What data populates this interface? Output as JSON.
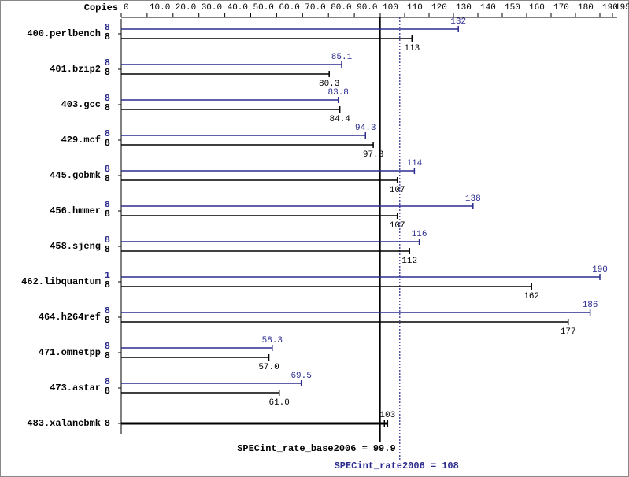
{
  "chart_data": {
    "type": "bar",
    "orientation": "horizontal",
    "copies_label": "Copies",
    "categories": [
      "400.perlbench",
      "401.bzip2",
      "403.gcc",
      "429.mcf",
      "445.gobmk",
      "456.hmmer",
      "458.sjeng",
      "462.libquantum",
      "464.h264ref",
      "471.omnetpp",
      "473.astar",
      "483.xalancbmk"
    ],
    "xlim": [
      0,
      195
    ],
    "xticks": [
      0,
      {
        "value": 10,
        "label": "10.0"
      },
      {
        "value": 20,
        "label": "20.0"
      },
      {
        "value": 30,
        "label": "30.0"
      },
      {
        "value": 40,
        "label": "40.0"
      },
      {
        "value": 50,
        "label": "50.0"
      },
      {
        "value": 60,
        "label": "60.0"
      },
      {
        "value": 70,
        "label": "70.0"
      },
      {
        "value": 80,
        "label": "80.0"
      },
      {
        "value": 90,
        "label": "90.0"
      },
      100,
      110,
      120,
      130,
      140,
      150,
      160,
      170,
      180,
      190,
      195
    ],
    "series": [
      {
        "color": "#2b2b8f",
        "copies": [
          8,
          8,
          8,
          8,
          8,
          8,
          8,
          1,
          8,
          8,
          8,
          null
        ],
        "values": [
          132,
          85.1,
          83.8,
          94.3,
          114,
          138,
          116,
          190,
          186,
          58.3,
          69.5,
          null
        ]
      },
      {
        "color": "#000000",
        "copies": [
          8,
          8,
          8,
          8,
          8,
          8,
          8,
          8,
          8,
          8,
          8,
          8
        ],
        "values": [
          113,
          80.3,
          84.4,
          97.3,
          107,
          107,
          112,
          162,
          177,
          57.0,
          61.0,
          103
        ],
        "value_labels": [
          "113",
          "80.3",
          "84.4",
          "97.3",
          "107",
          "107",
          "112",
          "162",
          "177",
          "57.0",
          "61.0",
          "103"
        ]
      }
    ],
    "reference_lines": [
      {
        "label": "SPECint_rate_base2006 =",
        "value": 99.9,
        "color": "#000000",
        "style": "solid"
      },
      {
        "label": "SPECint_rate2006 =",
        "value": 108,
        "color": "#2b2b8f",
        "style": "dotted"
      }
    ]
  }
}
